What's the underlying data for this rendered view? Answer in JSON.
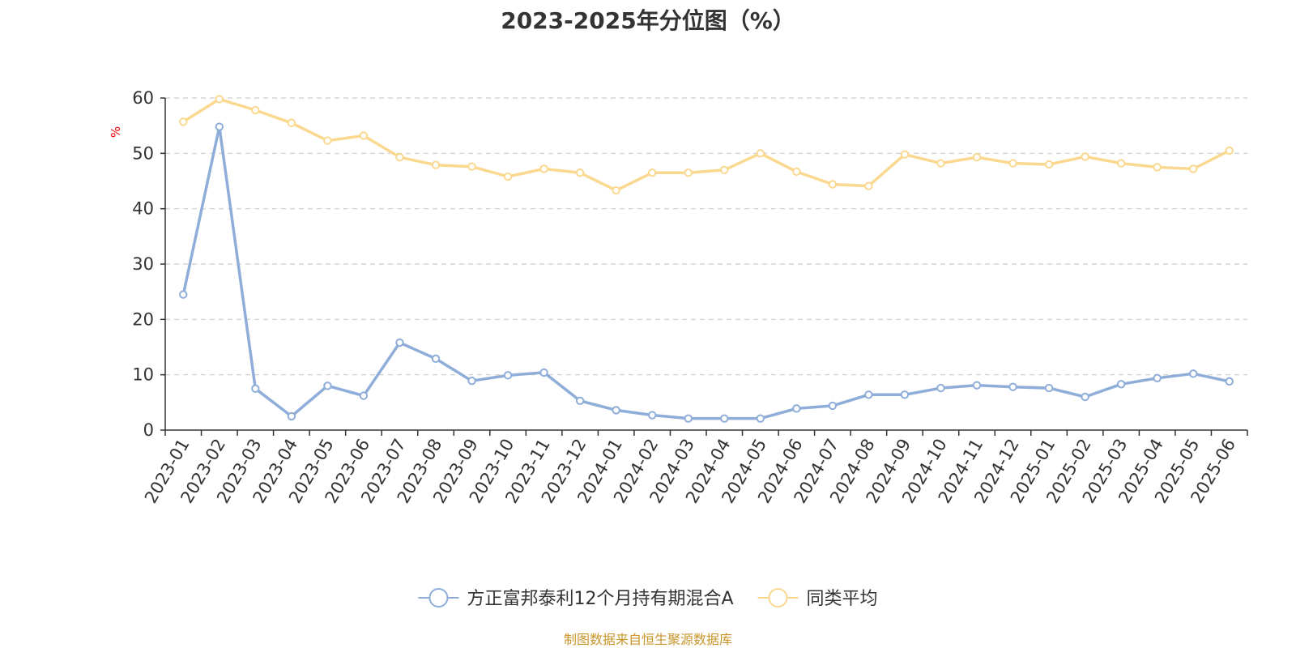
{
  "chart_data": {
    "type": "line",
    "title": "2023-2025年分位图（%）",
    "ylabel": "%",
    "ylim": [
      0,
      60
    ],
    "yticks": [
      0,
      10,
      20,
      30,
      40,
      50,
      60
    ],
    "grid": true,
    "legend_position": "bottom",
    "categories": [
      "2023-01",
      "2023-02",
      "2023-03",
      "2023-04",
      "2023-05",
      "2023-06",
      "2023-07",
      "2023-08",
      "2023-09",
      "2023-10",
      "2023-11",
      "2023-12",
      "2024-01",
      "2024-02",
      "2024-03",
      "2024-04",
      "2024-05",
      "2024-06",
      "2024-07",
      "2024-08",
      "2024-09",
      "2024-10",
      "2024-11",
      "2024-12",
      "2025-01",
      "2025-02",
      "2025-03",
      "2025-04",
      "2025-05",
      "2025-06"
    ],
    "series": [
      {
        "name": "方正富邦泰利12个月持有期混合A",
        "color": "#8fadd9",
        "values": [
          24.5,
          54.8,
          7.5,
          2.5,
          8.0,
          6.2,
          15.8,
          12.9,
          8.9,
          9.9,
          10.4,
          5.3,
          3.6,
          2.7,
          2.1,
          2.1,
          2.1,
          3.9,
          4.4,
          6.4,
          6.4,
          7.6,
          8.1,
          7.8,
          7.6,
          6.0,
          8.3,
          9.4,
          10.2,
          8.8
        ]
      },
      {
        "name": "同类平均",
        "color": "#fad88f",
        "values": [
          55.7,
          59.8,
          57.8,
          55.5,
          52.3,
          53.2,
          49.3,
          47.9,
          47.6,
          45.8,
          47.2,
          46.5,
          43.3,
          46.5,
          46.5,
          47.0,
          50.0,
          46.7,
          44.4,
          44.1,
          49.8,
          48.2,
          49.3,
          48.2,
          48.0,
          49.4,
          48.2,
          47.5,
          47.2,
          50.5
        ]
      }
    ],
    "source": "制图数据来自恒生聚源数据库"
  }
}
